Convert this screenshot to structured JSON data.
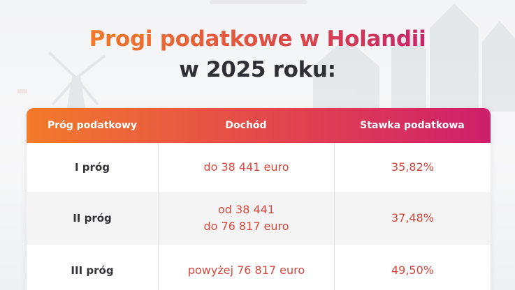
{
  "title": {
    "line1": "Progi podatkowe w Holandii",
    "line2": "w 2025 roku:"
  },
  "table": {
    "headers": [
      "Próg podatkowy",
      "Dochód",
      "Stawka podatkowa"
    ],
    "rows": [
      {
        "threshold": "I próg",
        "income": [
          "do 38 441 euro"
        ],
        "rate": "35,82%"
      },
      {
        "threshold": "II próg",
        "income": [
          "od 38 441",
          "do 76 817 euro"
        ],
        "rate": "37,48%"
      },
      {
        "threshold": "III próg",
        "income": [
          "powyżej 76 817 euro"
        ],
        "rate": "49,50%"
      }
    ]
  },
  "colors": {
    "accent_orange": "#f27a2b",
    "accent_magenta": "#cd1f6b",
    "value_text": "#d8473d",
    "title_dark": "#2f2f35"
  },
  "icons": [
    "windmill-icon",
    "dutch-houses-icon"
  ]
}
